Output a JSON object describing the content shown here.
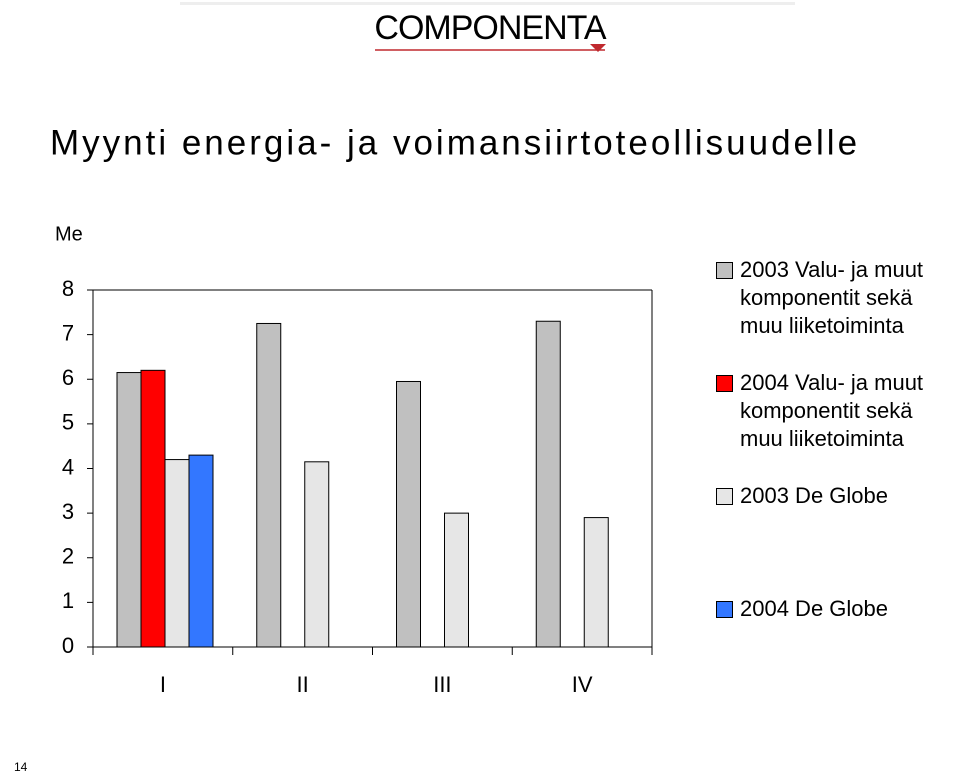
{
  "logo": "COMPONENTA",
  "page_number": "14",
  "chart_data": {
    "type": "bar",
    "title": "Myynti energia- ja voimansiirtoteollisuudelle",
    "ylabel": "Me",
    "categories": [
      "I",
      "II",
      "III",
      "IV"
    ],
    "series": [
      {
        "name": "2003 Valu- ja muut komponentit sekä muu liiketoiminta",
        "color": "#c0c0c0",
        "values": [
          6.15,
          7.25,
          5.95,
          7.3
        ]
      },
      {
        "name": "2004 Valu- ja muut komponentit sekä muu liiketoiminta",
        "color": "#ff0000",
        "values": [
          6.2,
          null,
          null,
          null
        ]
      },
      {
        "name": "2003 De Globe",
        "color": "#e6e6e6",
        "values": [
          4.2,
          4.15,
          3.0,
          2.9
        ]
      },
      {
        "name": "2004 De Globe",
        "color": "#3377ff",
        "values": [
          4.3,
          null,
          null,
          null
        ]
      }
    ],
    "ylim": [
      0,
      8
    ],
    "yticks": [
      0,
      1,
      2,
      3,
      4,
      5,
      6,
      7,
      8
    ],
    "legend": "right"
  }
}
